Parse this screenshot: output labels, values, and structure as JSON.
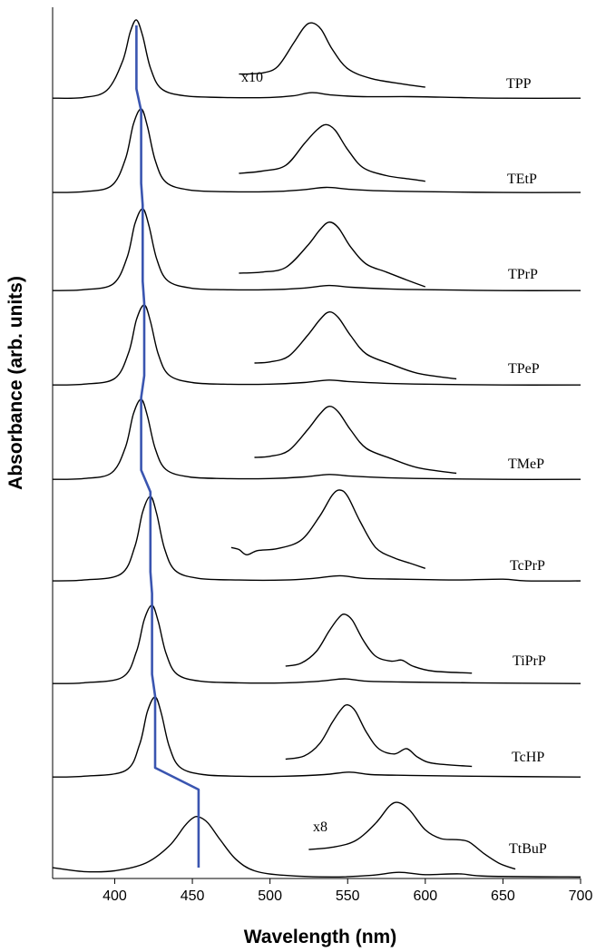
{
  "chart_data": {
    "type": "line",
    "title": "",
    "xlabel": "Wavelength (nm)",
    "ylabel": "Absorbance (arb. units)",
    "xlim": [
      360,
      700
    ],
    "x_ticks": [
      400,
      450,
      500,
      550,
      600,
      650,
      700
    ],
    "y_ticks": [],
    "grid": false,
    "legend": "none",
    "series": [
      {
        "name": "TPP",
        "soret_peak": 414,
        "raw": [
          [
            360,
            0.02
          ],
          [
            380,
            0.03
          ],
          [
            395,
            0.12
          ],
          [
            405,
            0.48
          ],
          [
            410,
            0.85
          ],
          [
            414,
            1.0
          ],
          [
            418,
            0.8
          ],
          [
            423,
            0.4
          ],
          [
            430,
            0.14
          ],
          [
            445,
            0.05
          ],
          [
            470,
            0.03
          ],
          [
            500,
            0.03
          ],
          [
            515,
            0.05
          ],
          [
            527,
            0.09
          ],
          [
            540,
            0.06
          ],
          [
            560,
            0.04
          ],
          [
            590,
            0.04
          ],
          [
            620,
            0.03
          ],
          [
            650,
            0.02
          ],
          [
            700,
            0.02
          ]
        ],
        "expanded_label": "x10",
        "expanded": [
          [
            480,
            0.17
          ],
          [
            495,
            0.18
          ],
          [
            505,
            0.24
          ],
          [
            515,
            0.45
          ],
          [
            522,
            0.6
          ],
          [
            527,
            0.64
          ],
          [
            533,
            0.58
          ],
          [
            540,
            0.4
          ],
          [
            550,
            0.22
          ],
          [
            565,
            0.13
          ],
          [
            585,
            0.08
          ],
          [
            600,
            0.05
          ]
        ]
      },
      {
        "name": "TEtP",
        "soret_peak": 417,
        "raw": [
          [
            360,
            0.02
          ],
          [
            380,
            0.03
          ],
          [
            398,
            0.1
          ],
          [
            407,
            0.42
          ],
          [
            412,
            0.82
          ],
          [
            417,
            1.0
          ],
          [
            421,
            0.8
          ],
          [
            426,
            0.4
          ],
          [
            433,
            0.14
          ],
          [
            448,
            0.05
          ],
          [
            470,
            0.03
          ],
          [
            500,
            0.03
          ],
          [
            520,
            0.05
          ],
          [
            536,
            0.08
          ],
          [
            550,
            0.06
          ],
          [
            570,
            0.04
          ],
          [
            600,
            0.03
          ],
          [
            650,
            0.02
          ],
          [
            700,
            0.02
          ]
        ],
        "expanded": [
          [
            480,
            0.12
          ],
          [
            495,
            0.14
          ],
          [
            510,
            0.19
          ],
          [
            522,
            0.38
          ],
          [
            530,
            0.5
          ],
          [
            536,
            0.55
          ],
          [
            542,
            0.5
          ],
          [
            550,
            0.33
          ],
          [
            560,
            0.17
          ],
          [
            575,
            0.1
          ],
          [
            590,
            0.07
          ],
          [
            600,
            0.05
          ]
        ]
      },
      {
        "name": "TPrP",
        "soret_peak": 418,
        "raw": [
          [
            360,
            0.02
          ],
          [
            380,
            0.03
          ],
          [
            399,
            0.1
          ],
          [
            408,
            0.42
          ],
          [
            413,
            0.82
          ],
          [
            418,
            1.0
          ],
          [
            422,
            0.8
          ],
          [
            427,
            0.4
          ],
          [
            434,
            0.14
          ],
          [
            449,
            0.05
          ],
          [
            470,
            0.03
          ],
          [
            500,
            0.03
          ],
          [
            522,
            0.05
          ],
          [
            538,
            0.08
          ],
          [
            552,
            0.06
          ],
          [
            575,
            0.04
          ],
          [
            600,
            0.03
          ],
          [
            650,
            0.02
          ],
          [
            700,
            0.02
          ]
        ],
        "expanded": [
          [
            480,
            0.12
          ],
          [
            495,
            0.13
          ],
          [
            510,
            0.17
          ],
          [
            524,
            0.36
          ],
          [
            532,
            0.5
          ],
          [
            538,
            0.57
          ],
          [
            544,
            0.52
          ],
          [
            552,
            0.35
          ],
          [
            562,
            0.2
          ],
          [
            575,
            0.13
          ],
          [
            588,
            0.06
          ],
          [
            600,
            0.0
          ]
        ]
      },
      {
        "name": "TPeP",
        "soret_peak": 419,
        "raw": [
          [
            360,
            0.02
          ],
          [
            380,
            0.03
          ],
          [
            400,
            0.1
          ],
          [
            409,
            0.42
          ],
          [
            414,
            0.82
          ],
          [
            419,
            1.0
          ],
          [
            423,
            0.8
          ],
          [
            428,
            0.4
          ],
          [
            435,
            0.14
          ],
          [
            450,
            0.05
          ],
          [
            470,
            0.03
          ],
          [
            500,
            0.03
          ],
          [
            522,
            0.05
          ],
          [
            538,
            0.08
          ],
          [
            552,
            0.06
          ],
          [
            575,
            0.04
          ],
          [
            600,
            0.03
          ],
          [
            650,
            0.02
          ],
          [
            700,
            0.02
          ]
        ],
        "expanded": [
          [
            490,
            0.16
          ],
          [
            500,
            0.17
          ],
          [
            512,
            0.22
          ],
          [
            524,
            0.4
          ],
          [
            532,
            0.54
          ],
          [
            538,
            0.61
          ],
          [
            544,
            0.56
          ],
          [
            552,
            0.4
          ],
          [
            562,
            0.24
          ],
          [
            578,
            0.15
          ],
          [
            595,
            0.07
          ],
          [
            620,
            0.02
          ]
        ]
      },
      {
        "name": "TMeP",
        "soret_peak": 417,
        "raw": [
          [
            360,
            0.02
          ],
          [
            380,
            0.03
          ],
          [
            398,
            0.1
          ],
          [
            407,
            0.42
          ],
          [
            412,
            0.82
          ],
          [
            417,
            1.0
          ],
          [
            421,
            0.8
          ],
          [
            426,
            0.4
          ],
          [
            433,
            0.14
          ],
          [
            448,
            0.05
          ],
          [
            470,
            0.03
          ],
          [
            500,
            0.03
          ],
          [
            522,
            0.05
          ],
          [
            538,
            0.08
          ],
          [
            552,
            0.06
          ],
          [
            575,
            0.04
          ],
          [
            600,
            0.03
          ],
          [
            650,
            0.02
          ],
          [
            700,
            0.02
          ]
        ],
        "expanded": [
          [
            490,
            0.16
          ],
          [
            500,
            0.17
          ],
          [
            512,
            0.22
          ],
          [
            524,
            0.4
          ],
          [
            532,
            0.54
          ],
          [
            538,
            0.61
          ],
          [
            544,
            0.56
          ],
          [
            552,
            0.4
          ],
          [
            562,
            0.24
          ],
          [
            578,
            0.15
          ],
          [
            595,
            0.07
          ],
          [
            620,
            0.02
          ]
        ]
      },
      {
        "name": "TcPrP",
        "soret_peak": 423,
        "raw": [
          [
            360,
            0.02
          ],
          [
            380,
            0.03
          ],
          [
            404,
            0.1
          ],
          [
            413,
            0.42
          ],
          [
            418,
            0.82
          ],
          [
            423,
            1.0
          ],
          [
            427,
            0.8
          ],
          [
            432,
            0.4
          ],
          [
            439,
            0.14
          ],
          [
            454,
            0.05
          ],
          [
            480,
            0.03
          ],
          [
            510,
            0.03
          ],
          [
            528,
            0.05
          ],
          [
            545,
            0.08
          ],
          [
            560,
            0.05
          ],
          [
            585,
            0.04
          ],
          [
            620,
            0.03
          ],
          [
            650,
            0.04
          ],
          [
            665,
            0.02
          ],
          [
            700,
            0.02
          ]
        ],
        "expanded": [
          [
            475,
            0.25
          ],
          [
            480,
            0.23
          ],
          [
            485,
            0.18
          ],
          [
            492,
            0.22
          ],
          [
            505,
            0.24
          ],
          [
            520,
            0.32
          ],
          [
            532,
            0.55
          ],
          [
            540,
            0.75
          ],
          [
            545,
            0.8
          ],
          [
            550,
            0.74
          ],
          [
            558,
            0.5
          ],
          [
            568,
            0.25
          ],
          [
            580,
            0.15
          ],
          [
            590,
            0.1
          ],
          [
            600,
            0.05
          ]
        ]
      },
      {
        "name": "TiPrP",
        "soret_peak": 424,
        "raw": [
          [
            360,
            0.02
          ],
          [
            380,
            0.03
          ],
          [
            405,
            0.1
          ],
          [
            414,
            0.42
          ],
          [
            419,
            0.82
          ],
          [
            424,
            1.0
          ],
          [
            428,
            0.8
          ],
          [
            433,
            0.4
          ],
          [
            440,
            0.14
          ],
          [
            455,
            0.05
          ],
          [
            480,
            0.03
          ],
          [
            510,
            0.03
          ],
          [
            532,
            0.05
          ],
          [
            548,
            0.08
          ],
          [
            562,
            0.05
          ],
          [
            585,
            0.04
          ],
          [
            630,
            0.03
          ],
          [
            700,
            0.02
          ]
        ],
        "expanded": [
          [
            510,
            0.1
          ],
          [
            520,
            0.13
          ],
          [
            530,
            0.25
          ],
          [
            538,
            0.45
          ],
          [
            544,
            0.58
          ],
          [
            548,
            0.62
          ],
          [
            553,
            0.56
          ],
          [
            560,
            0.36
          ],
          [
            568,
            0.2
          ],
          [
            578,
            0.15
          ],
          [
            585,
            0.16
          ],
          [
            592,
            0.1
          ],
          [
            605,
            0.05
          ],
          [
            630,
            0.03
          ]
        ]
      },
      {
        "name": "TcHP",
        "soret_peak": 426,
        "raw": [
          [
            360,
            0.02
          ],
          [
            380,
            0.03
          ],
          [
            407,
            0.1
          ],
          [
            416,
            0.42
          ],
          [
            421,
            0.82
          ],
          [
            426,
            1.0
          ],
          [
            430,
            0.8
          ],
          [
            435,
            0.4
          ],
          [
            442,
            0.14
          ],
          [
            457,
            0.05
          ],
          [
            480,
            0.03
          ],
          [
            510,
            0.03
          ],
          [
            535,
            0.05
          ],
          [
            551,
            0.08
          ],
          [
            565,
            0.05
          ],
          [
            590,
            0.04
          ],
          [
            630,
            0.03
          ],
          [
            700,
            0.02
          ]
        ],
        "expanded": [
          [
            510,
            0.1
          ],
          [
            522,
            0.13
          ],
          [
            532,
            0.25
          ],
          [
            540,
            0.45
          ],
          [
            546,
            0.58
          ],
          [
            550,
            0.62
          ],
          [
            555,
            0.56
          ],
          [
            562,
            0.36
          ],
          [
            570,
            0.2
          ],
          [
            580,
            0.15
          ],
          [
            588,
            0.2
          ],
          [
            595,
            0.12
          ],
          [
            605,
            0.06
          ],
          [
            630,
            0.03
          ]
        ]
      },
      {
        "name": "TtBuP",
        "soret_peak": 454,
        "raw": [
          [
            360,
            0.14
          ],
          [
            380,
            0.09
          ],
          [
            400,
            0.1
          ],
          [
            420,
            0.2
          ],
          [
            435,
            0.42
          ],
          [
            445,
            0.68
          ],
          [
            450,
            0.78
          ],
          [
            454,
            0.8
          ],
          [
            460,
            0.72
          ],
          [
            468,
            0.5
          ],
          [
            478,
            0.25
          ],
          [
            490,
            0.1
          ],
          [
            510,
            0.04
          ],
          [
            540,
            0.02
          ],
          [
            565,
            0.04
          ],
          [
            583,
            0.08
          ],
          [
            600,
            0.05
          ],
          [
            622,
            0.06
          ],
          [
            640,
            0.03
          ],
          [
            700,
            0.02
          ]
        ],
        "expanded_label": "x8",
        "expanded": [
          [
            525,
            0.2
          ],
          [
            540,
            0.22
          ],
          [
            555,
            0.28
          ],
          [
            568,
            0.44
          ],
          [
            577,
            0.6
          ],
          [
            583,
            0.63
          ],
          [
            590,
            0.56
          ],
          [
            600,
            0.38
          ],
          [
            610,
            0.3
          ],
          [
            620,
            0.29
          ],
          [
            628,
            0.27
          ],
          [
            638,
            0.16
          ],
          [
            648,
            0.07
          ],
          [
            658,
            0.02
          ]
        ]
      }
    ],
    "soret_trend_line": [
      [
        414,
        0
      ],
      [
        414,
        0.05
      ],
      [
        417,
        0.05
      ],
      [
        417,
        1
      ],
      [
        417,
        2
      ],
      [
        417,
        3
      ],
      [
        417,
        4
      ],
      [
        417,
        4.05
      ],
      [
        423,
        4.05
      ],
      [
        423,
        5
      ],
      [
        424,
        6
      ],
      [
        426,
        6.05
      ],
      [
        426,
        7
      ],
      [
        454,
        7.05
      ],
      [
        454,
        7.1
      ]
    ]
  }
}
